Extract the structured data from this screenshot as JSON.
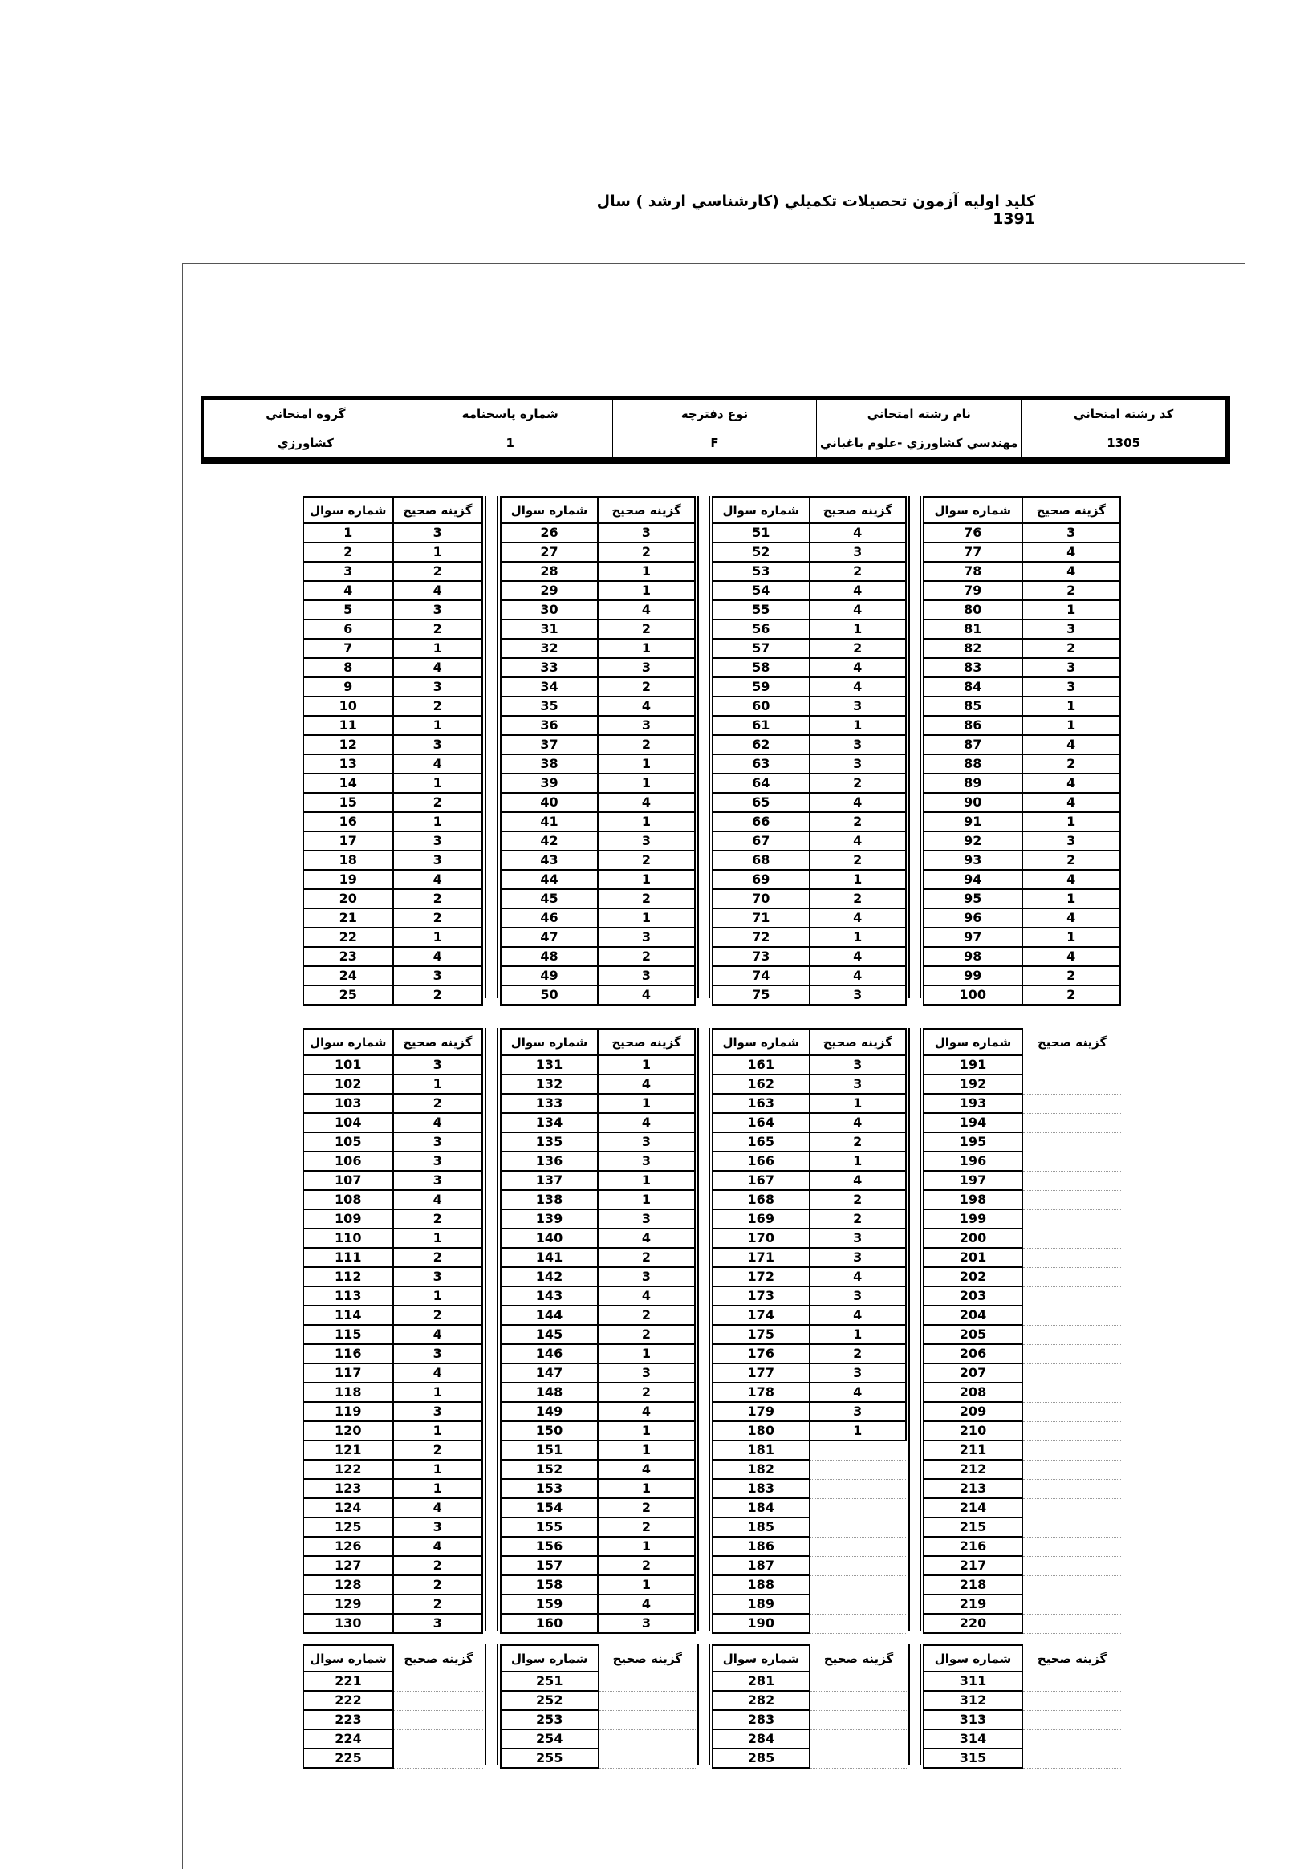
{
  "title": "كليد اوليه آزمون تحصيلات تكميلي (كارشناسي ارشد ) سال 1391",
  "header": {
    "columns": [
      "كد رشته امتحاني",
      "نام رشته امتحاني",
      "نوع دفترچه",
      "شماره پاسخنامه",
      "گروه امتحاني"
    ],
    "values": [
      "1305",
      "مهندسي كشاورزي -علوم باغباني",
      "F",
      "1",
      "كشاورزي"
    ]
  },
  "col_labels": {
    "question": "شماره سوال",
    "answer": "گزينه صحيح"
  },
  "sections": [
    {
      "groups": [
        {
          "start": 1,
          "answers": [
            "3",
            "1",
            "2",
            "4",
            "3",
            "2",
            "1",
            "4",
            "3",
            "2",
            "1",
            "3",
            "4",
            "1",
            "2",
            "1",
            "3",
            "3",
            "4",
            "2",
            "2",
            "1",
            "4",
            "3",
            "2"
          ]
        },
        {
          "start": 26,
          "answers": [
            "3",
            "2",
            "1",
            "1",
            "4",
            "2",
            "1",
            "3",
            "2",
            "4",
            "3",
            "2",
            "1",
            "1",
            "4",
            "1",
            "3",
            "2",
            "1",
            "2",
            "1",
            "3",
            "2",
            "3",
            "4"
          ]
        },
        {
          "start": 51,
          "answers": [
            "4",
            "3",
            "2",
            "4",
            "4",
            "1",
            "2",
            "4",
            "4",
            "3",
            "1",
            "3",
            "3",
            "2",
            "4",
            "2",
            "4",
            "2",
            "1",
            "2",
            "4",
            "1",
            "4",
            "4",
            "3"
          ]
        },
        {
          "start": 76,
          "answers": [
            "3",
            "4",
            "4",
            "2",
            "1",
            "3",
            "2",
            "3",
            "3",
            "1",
            "1",
            "4",
            "2",
            "4",
            "4",
            "1",
            "3",
            "2",
            "4",
            "1",
            "4",
            "1",
            "4",
            "2",
            "2"
          ]
        }
      ]
    },
    {
      "groups": [
        {
          "start": 101,
          "answers": [
            "3",
            "1",
            "2",
            "4",
            "3",
            "3",
            "3",
            "4",
            "2",
            "1",
            "2",
            "3",
            "1",
            "2",
            "4",
            "3",
            "4",
            "1",
            "3",
            "1",
            "2",
            "1",
            "1",
            "4",
            "3",
            "4",
            "2",
            "2",
            "2",
            "3"
          ]
        },
        {
          "start": 131,
          "answers": [
            "1",
            "4",
            "1",
            "4",
            "3",
            "3",
            "1",
            "1",
            "3",
            "4",
            "2",
            "3",
            "4",
            "2",
            "2",
            "1",
            "3",
            "2",
            "4",
            "1",
            "1",
            "4",
            "1",
            "2",
            "2",
            "1",
            "2",
            "1",
            "4",
            "3"
          ]
        },
        {
          "start": 161,
          "answers": [
            "3",
            "3",
            "1",
            "4",
            "2",
            "1",
            "4",
            "2",
            "2",
            "3",
            "3",
            "4",
            "3",
            "4",
            "1",
            "2",
            "3",
            "4",
            "3",
            "1",
            "",
            "",
            "",
            "",
            "",
            "",
            "",
            "",
            "",
            ""
          ]
        },
        {
          "start": 191,
          "answers": [
            "",
            "",
            "",
            "",
            "",
            "",
            "",
            "",
            "",
            "",
            "",
            "",
            "",
            "",
            "",
            "",
            "",
            "",
            "",
            "",
            "",
            "",
            "",
            "",
            "",
            "",
            "",
            "",
            "",
            ""
          ]
        }
      ]
    },
    {
      "groups": [
        {
          "start": 221,
          "answers": [
            "",
            "",
            "",
            "",
            ""
          ]
        },
        {
          "start": 251,
          "answers": [
            "",
            "",
            "",
            "",
            ""
          ]
        },
        {
          "start": 281,
          "answers": [
            "",
            "",
            "",
            "",
            ""
          ]
        },
        {
          "start": 311,
          "answers": [
            "",
            "",
            "",
            "",
            ""
          ]
        }
      ]
    }
  ]
}
